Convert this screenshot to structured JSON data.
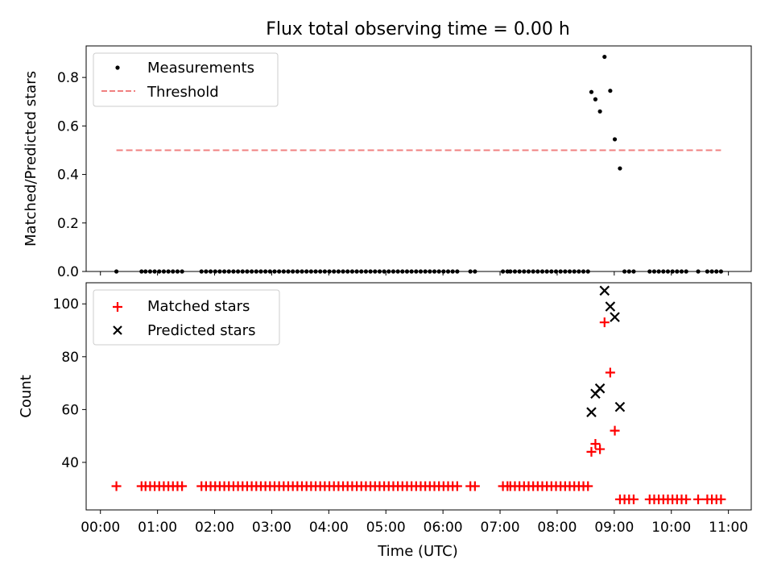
{
  "figure": {
    "title": "Flux total observing time = 0.00 h"
  },
  "colors": {
    "threshold": "#f08080",
    "matched": "#ff0000",
    "predicted": "#000000",
    "measurements": "#000000"
  },
  "chart_data": [
    {
      "type": "scatter",
      "panel": "top",
      "title": "Flux total observing time = 0.00 h",
      "xlabel": "",
      "ylabel": "Matched/Predicted stars",
      "xlim": [
        -0.25,
        11.4
      ],
      "ylim": [
        0,
        0.93
      ],
      "yticks": [
        0.0,
        0.2,
        0.4,
        0.6,
        0.8
      ],
      "ytick_labels": [
        "0.0",
        "0.2",
        "0.4",
        "0.6",
        "0.8"
      ],
      "legend_position": "top-left",
      "series": [
        {
          "name": "Measurements",
          "kind": "scatter",
          "marker": "dot",
          "points": [
            [
              0.28,
              0
            ],
            [
              0.72,
              0
            ],
            [
              0.79,
              0
            ],
            [
              0.87,
              0
            ],
            [
              0.95,
              0
            ],
            [
              1.03,
              0
            ],
            [
              1.11,
              0
            ],
            [
              1.19,
              0
            ],
            [
              1.27,
              0
            ],
            [
              1.35,
              0
            ],
            [
              1.43,
              0
            ],
            [
              1.77,
              0
            ],
            [
              1.85,
              0
            ],
            [
              1.93,
              0
            ],
            [
              2.01,
              0
            ],
            [
              2.09,
              0
            ],
            [
              2.17,
              0
            ],
            [
              2.25,
              0
            ],
            [
              2.33,
              0
            ],
            [
              2.41,
              0
            ],
            [
              2.49,
              0
            ],
            [
              2.57,
              0
            ],
            [
              2.65,
              0
            ],
            [
              2.73,
              0
            ],
            [
              2.81,
              0
            ],
            [
              2.89,
              0
            ],
            [
              2.97,
              0
            ],
            [
              3.05,
              0
            ],
            [
              3.13,
              0
            ],
            [
              3.21,
              0
            ],
            [
              3.29,
              0
            ],
            [
              3.37,
              0
            ],
            [
              3.45,
              0
            ],
            [
              3.53,
              0
            ],
            [
              3.61,
              0
            ],
            [
              3.69,
              0
            ],
            [
              3.77,
              0
            ],
            [
              3.85,
              0
            ],
            [
              3.93,
              0
            ],
            [
              4.01,
              0
            ],
            [
              4.09,
              0
            ],
            [
              4.17,
              0
            ],
            [
              4.25,
              0
            ],
            [
              4.33,
              0
            ],
            [
              4.41,
              0
            ],
            [
              4.49,
              0
            ],
            [
              4.57,
              0
            ],
            [
              4.65,
              0
            ],
            [
              4.73,
              0
            ],
            [
              4.81,
              0
            ],
            [
              4.89,
              0
            ],
            [
              4.97,
              0
            ],
            [
              5.05,
              0
            ],
            [
              5.13,
              0
            ],
            [
              5.21,
              0
            ],
            [
              5.29,
              0
            ],
            [
              5.37,
              0
            ],
            [
              5.45,
              0
            ],
            [
              5.53,
              0
            ],
            [
              5.61,
              0
            ],
            [
              5.69,
              0
            ],
            [
              5.77,
              0
            ],
            [
              5.85,
              0
            ],
            [
              5.93,
              0
            ],
            [
              6.01,
              0
            ],
            [
              6.09,
              0
            ],
            [
              6.17,
              0
            ],
            [
              6.25,
              0
            ],
            [
              6.48,
              0
            ],
            [
              6.56,
              0
            ],
            [
              7.05,
              0
            ],
            [
              7.13,
              0
            ],
            [
              7.18,
              0
            ],
            [
              7.26,
              0
            ],
            [
              7.34,
              0
            ],
            [
              7.42,
              0
            ],
            [
              7.5,
              0
            ],
            [
              7.58,
              0
            ],
            [
              7.66,
              0
            ],
            [
              7.74,
              0
            ],
            [
              7.82,
              0
            ],
            [
              7.9,
              0
            ],
            [
              7.98,
              0
            ],
            [
              8.06,
              0
            ],
            [
              8.14,
              0
            ],
            [
              8.22,
              0
            ],
            [
              8.3,
              0
            ],
            [
              8.38,
              0
            ],
            [
              8.46,
              0
            ],
            [
              8.54,
              0
            ],
            [
              8.6,
              0.74
            ],
            [
              8.67,
              0.71
            ],
            [
              8.75,
              0.66
            ],
            [
              8.83,
              0.885
            ],
            [
              8.93,
              0.745
            ],
            [
              9.01,
              0.545
            ],
            [
              9.1,
              0.425
            ],
            [
              9.18,
              0
            ],
            [
              9.26,
              0
            ],
            [
              9.34,
              0
            ],
            [
              9.62,
              0
            ],
            [
              9.7,
              0
            ],
            [
              9.78,
              0
            ],
            [
              9.86,
              0
            ],
            [
              9.94,
              0
            ],
            [
              10.02,
              0
            ],
            [
              10.1,
              0
            ],
            [
              10.18,
              0
            ],
            [
              10.26,
              0
            ],
            [
              10.47,
              0
            ],
            [
              10.63,
              0
            ],
            [
              10.71,
              0
            ],
            [
              10.79,
              0
            ],
            [
              10.87,
              0
            ]
          ]
        },
        {
          "name": "Threshold",
          "kind": "line",
          "style": "dashed",
          "points": [
            [
              0.28,
              0.5
            ],
            [
              10.87,
              0.5
            ]
          ]
        }
      ]
    },
    {
      "type": "scatter",
      "panel": "bottom",
      "xlabel": "Time (UTC)",
      "ylabel": "Count",
      "xlim": [
        -0.25,
        11.4
      ],
      "ylim": [
        22,
        108
      ],
      "xticks": [
        0,
        1,
        2,
        3,
        4,
        5,
        6,
        7,
        8,
        9,
        10,
        11
      ],
      "xtick_labels": [
        "00:00",
        "01:00",
        "02:00",
        "03:00",
        "04:00",
        "05:00",
        "06:00",
        "07:00",
        "08:00",
        "09:00",
        "10:00",
        "11:00"
      ],
      "yticks": [
        40,
        60,
        80,
        100
      ],
      "ytick_labels": [
        "40",
        "60",
        "80",
        "100"
      ],
      "legend_position": "top-left",
      "series": [
        {
          "name": "Matched stars",
          "marker": "plus",
          "points": [
            [
              0.28,
              31
            ],
            [
              0.72,
              31
            ],
            [
              0.79,
              31
            ],
            [
              0.87,
              31
            ],
            [
              0.95,
              31
            ],
            [
              1.03,
              31
            ],
            [
              1.11,
              31
            ],
            [
              1.19,
              31
            ],
            [
              1.27,
              31
            ],
            [
              1.35,
              31
            ],
            [
              1.43,
              31
            ],
            [
              1.77,
              31
            ],
            [
              1.85,
              31
            ],
            [
              1.93,
              31
            ],
            [
              2.01,
              31
            ],
            [
              2.09,
              31
            ],
            [
              2.17,
              31
            ],
            [
              2.25,
              31
            ],
            [
              2.33,
              31
            ],
            [
              2.41,
              31
            ],
            [
              2.49,
              31
            ],
            [
              2.57,
              31
            ],
            [
              2.65,
              31
            ],
            [
              2.73,
              31
            ],
            [
              2.81,
              31
            ],
            [
              2.89,
              31
            ],
            [
              2.97,
              31
            ],
            [
              3.05,
              31
            ],
            [
              3.13,
              31
            ],
            [
              3.21,
              31
            ],
            [
              3.29,
              31
            ],
            [
              3.37,
              31
            ],
            [
              3.45,
              31
            ],
            [
              3.53,
              31
            ],
            [
              3.61,
              31
            ],
            [
              3.69,
              31
            ],
            [
              3.77,
              31
            ],
            [
              3.85,
              31
            ],
            [
              3.93,
              31
            ],
            [
              4.01,
              31
            ],
            [
              4.09,
              31
            ],
            [
              4.17,
              31
            ],
            [
              4.25,
              31
            ],
            [
              4.33,
              31
            ],
            [
              4.41,
              31
            ],
            [
              4.49,
              31
            ],
            [
              4.57,
              31
            ],
            [
              4.65,
              31
            ],
            [
              4.73,
              31
            ],
            [
              4.81,
              31
            ],
            [
              4.89,
              31
            ],
            [
              4.97,
              31
            ],
            [
              5.05,
              31
            ],
            [
              5.13,
              31
            ],
            [
              5.21,
              31
            ],
            [
              5.29,
              31
            ],
            [
              5.37,
              31
            ],
            [
              5.45,
              31
            ],
            [
              5.53,
              31
            ],
            [
              5.61,
              31
            ],
            [
              5.69,
              31
            ],
            [
              5.77,
              31
            ],
            [
              5.85,
              31
            ],
            [
              5.93,
              31
            ],
            [
              6.01,
              31
            ],
            [
              6.09,
              31
            ],
            [
              6.17,
              31
            ],
            [
              6.25,
              31
            ],
            [
              6.48,
              31
            ],
            [
              6.56,
              31
            ],
            [
              7.05,
              31
            ],
            [
              7.13,
              31
            ],
            [
              7.18,
              31
            ],
            [
              7.26,
              31
            ],
            [
              7.34,
              31
            ],
            [
              7.42,
              31
            ],
            [
              7.5,
              31
            ],
            [
              7.58,
              31
            ],
            [
              7.66,
              31
            ],
            [
              7.74,
              31
            ],
            [
              7.82,
              31
            ],
            [
              7.9,
              31
            ],
            [
              7.98,
              31
            ],
            [
              8.06,
              31
            ],
            [
              8.14,
              31
            ],
            [
              8.22,
              31
            ],
            [
              8.3,
              31
            ],
            [
              8.38,
              31
            ],
            [
              8.46,
              31
            ],
            [
              8.54,
              31
            ],
            [
              8.6,
              44
            ],
            [
              8.67,
              47
            ],
            [
              8.75,
              45
            ],
            [
              8.83,
              93
            ],
            [
              8.93,
              74
            ],
            [
              9.01,
              52
            ],
            [
              9.1,
              26
            ],
            [
              9.18,
              26
            ],
            [
              9.26,
              26
            ],
            [
              9.34,
              26
            ],
            [
              9.62,
              26
            ],
            [
              9.7,
              26
            ],
            [
              9.78,
              26
            ],
            [
              9.86,
              26
            ],
            [
              9.94,
              26
            ],
            [
              10.02,
              26
            ],
            [
              10.1,
              26
            ],
            [
              10.18,
              26
            ],
            [
              10.26,
              26
            ],
            [
              10.47,
              26
            ],
            [
              10.63,
              26
            ],
            [
              10.71,
              26
            ],
            [
              10.79,
              26
            ],
            [
              10.87,
              26
            ]
          ]
        },
        {
          "name": "Predicted stars",
          "marker": "x",
          "points": [
            [
              8.6,
              59
            ],
            [
              8.67,
              66
            ],
            [
              8.75,
              68
            ],
            [
              8.83,
              105
            ],
            [
              8.93,
              99
            ],
            [
              9.01,
              95
            ],
            [
              9.1,
              61
            ]
          ]
        }
      ]
    }
  ]
}
